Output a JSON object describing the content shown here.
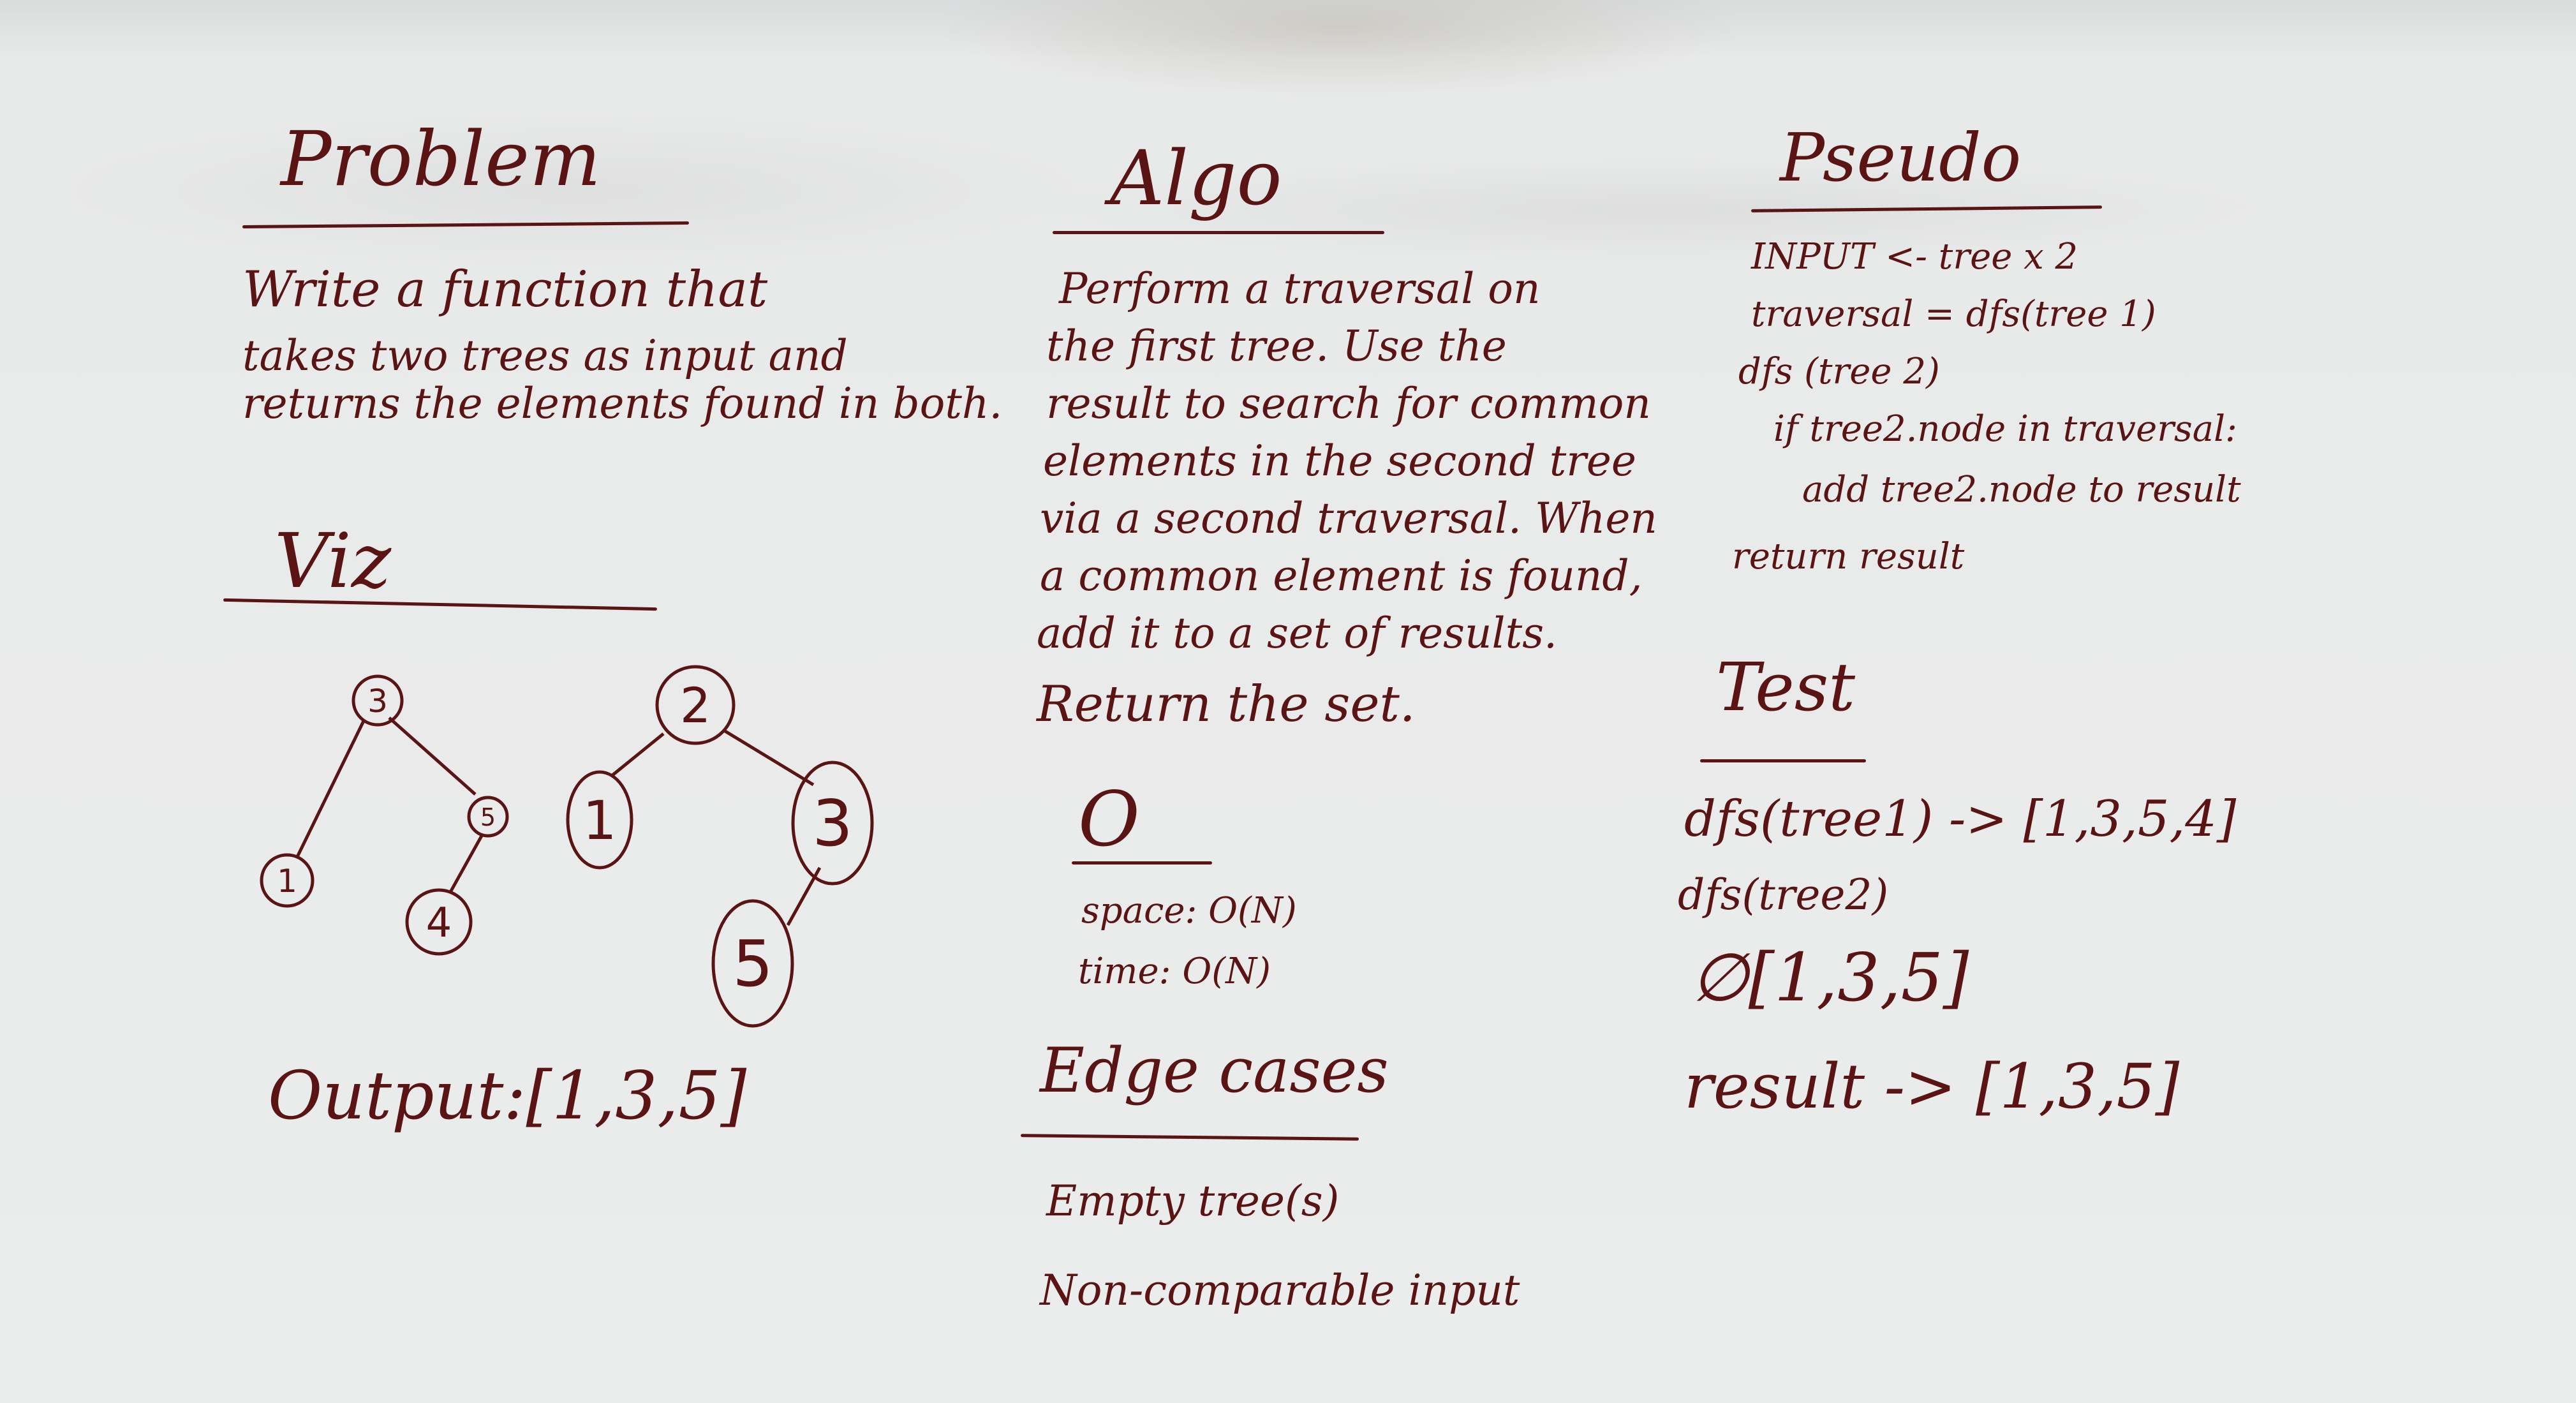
{
  "problem": {
    "heading": "Problem",
    "lines": [
      "Write a function that",
      "takes two trees as input and",
      "returns the elements found in both."
    ]
  },
  "viz": {
    "heading": "Viz",
    "tree1": [
      "3",
      "1",
      "5",
      "4"
    ],
    "tree2": [
      "2",
      "1",
      "3",
      "5"
    ],
    "output": "Output:[1,3,5]"
  },
  "algo": {
    "heading": "Algo",
    "lines": [
      "Perform a traversal on",
      "the first tree. Use the",
      "result to search for common",
      "elements in the second tree",
      "via a second traversal. When",
      "a common element is found,",
      "add it to a set of results.",
      "Return the set."
    ]
  },
  "big_o": {
    "heading": "O",
    "space": "space: O(N)",
    "time": "time: O(N)"
  },
  "edge_cases": {
    "heading": "Edge cases",
    "items": [
      "Empty tree(s)",
      "Non-comparable input"
    ]
  },
  "pseudo": {
    "heading": "Pseudo",
    "lines": [
      "INPUT <- tree x 2",
      "traversal = dfs(tree 1)",
      "dfs (tree 2)",
      "if tree2.node in traversal:",
      "add tree2.node to result",
      "return result"
    ]
  },
  "test": {
    "heading": "Test",
    "lines": [
      "dfs(tree1) -> [1,3,5,4]",
      "dfs(tree2)",
      "∅[1,3,5]",
      "result -> [1,3,5]"
    ]
  },
  "colors": {
    "ink": "#5a1414",
    "board": "#e9eaea"
  }
}
